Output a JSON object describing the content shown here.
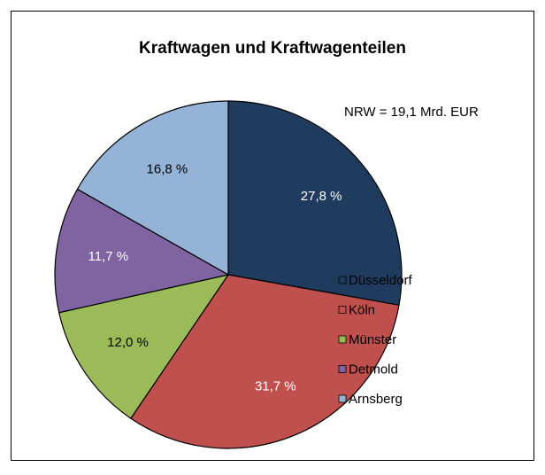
{
  "chart_data": {
    "type": "pie",
    "title": "Kraftwagen und Kraftwagenteilen",
    "annotation": "NRW = 19,1 Mrd. EUR",
    "categories": [
      "Düsseldorf",
      "Köln",
      "Münster",
      "Detmold",
      "Arnsberg"
    ],
    "values": [
      27.8,
      31.7,
      12.0,
      11.7,
      16.8
    ],
    "value_labels": [
      "27,8 %",
      "31,7 %",
      "12,0 %",
      "11,7 %",
      "16,8 %"
    ],
    "colors": [
      "#1F3B5E",
      "#C0504D",
      "#9BBB59",
      "#8064A2",
      "#95B3D7"
    ],
    "label_colors": [
      "#ffffff",
      "#ffffff",
      "#000000",
      "#ffffff",
      "#000000"
    ]
  }
}
